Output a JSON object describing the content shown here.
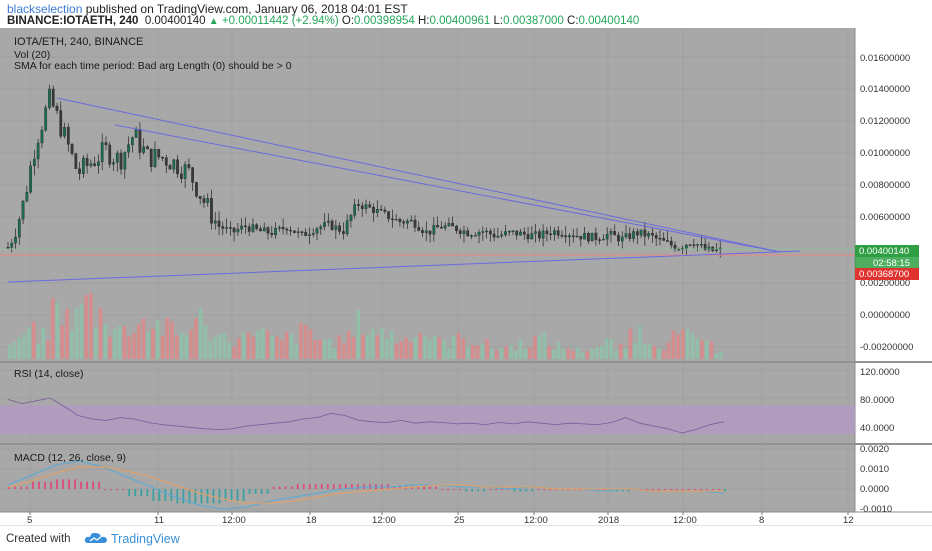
{
  "header": {
    "username": "blackselection",
    "published": "published on TradingView.com, January 06, 2018 04:01 EST",
    "symbol": "BINANCE:IOTAETH, 240",
    "last_price": "0.00400140",
    "change": "+0.00011442 (+2.94%)",
    "open_label": "O:",
    "open": "0.00398954",
    "high_label": "H:",
    "high": "0.00400961",
    "low_label": "L:",
    "low": "0.00387000",
    "close_label": "C:",
    "close": "0.00400140"
  },
  "legend": {
    "title": "IOTA/ETH, 240, BINANCE",
    "vol": "Vol (20)",
    "sma_error": "SMA for each time period: Bad arg Length (0) should be > 0",
    "rsi": "RSI (14, close)",
    "macd": "MACD (12, 26, close, 9)"
  },
  "badges": {
    "price": "0.00400140",
    "countdown": "02:58:15",
    "line": "0.00368700"
  },
  "footer": {
    "created": "Created with",
    "brand": "TradingView"
  },
  "colors": {
    "background": "#a8a8a8",
    "up_candle": "#1e6b52",
    "down_candle": "#3a3a3a",
    "trendline": "#6a6adf",
    "support_line": "#e88a80",
    "vol_up": "#8fc1a8",
    "vol_down": "#d98a8a",
    "rsi_band": "#b39ac4",
    "macd_line": "#5aa9d6",
    "signal_line": "#e8a060",
    "price_badge": "#2ea043",
    "line_badge": "#e0322f"
  },
  "chart_data": [
    {
      "type": "candlestick",
      "title": "IOTA/ETH, 240, BINANCE",
      "y_ticks": [
        "0.01600000",
        "0.01400000",
        "0.01200000",
        "0.01000000",
        "0.00800000",
        "0.00600000",
        "0.00200000",
        "0.00000000",
        "-0.00200000"
      ],
      "ylim": [
        -0.0024,
        0.0172
      ],
      "x_ticks": [
        "5",
        "11",
        "12:00",
        "18",
        "12:00",
        "25",
        "12:00",
        "2018",
        "12:00",
        "8",
        "12"
      ],
      "grid": true,
      "close_path": [
        0.0042,
        0.0065,
        0.0108,
        0.0134,
        0.0112,
        0.0088,
        0.0095,
        0.0102,
        0.0096,
        0.0112,
        0.0098,
        0.0098,
        0.0094,
        0.0088,
        0.0071,
        0.0056,
        0.0051,
        0.0055,
        0.0052,
        0.0051,
        0.0055,
        0.0049,
        0.0054,
        0.0056,
        0.0052,
        0.0069,
        0.0066,
        0.0062,
        0.0058,
        0.0058,
        0.0051,
        0.0055,
        0.0054,
        0.0051,
        0.0052,
        0.0049,
        0.0051,
        0.005,
        0.0049,
        0.0052,
        0.0051,
        0.0049,
        0.0048,
        0.005,
        0.0047,
        0.0051,
        0.0049,
        0.0045,
        0.0042,
        0.0046,
        0.004,
        0.004
      ],
      "trendlines": [
        {
          "x": [
            "Jan 06 2018",
            "Jan 06 2018"
          ],
          "y": [
            0.0134,
            0.004
          ]
        },
        {
          "x": [
            "Jan 06 2018",
            "Jan 06 2018"
          ],
          "y": [
            0.0117,
            0.004
          ]
        },
        {
          "x": [
            "Jan 06 2018",
            "Jan 06 2018"
          ],
          "y": [
            0.0012,
            0.004
          ]
        }
      ],
      "horizontal_lines": [
        0.003687,
        0.0040014
      ]
    },
    {
      "type": "bar",
      "title": "Vol (20)",
      "values": [
        0.18,
        0.3,
        0.25,
        0.55,
        0.45,
        0.62,
        0.5,
        0.35,
        0.3,
        0.42,
        0.38,
        0.33,
        0.28,
        0.45,
        0.3,
        0.25,
        0.22,
        0.35,
        0.28,
        0.2,
        0.24,
        0.3,
        0.22,
        0.19,
        0.25,
        0.4,
        0.32,
        0.28,
        0.22,
        0.3,
        0.26,
        0.18,
        0.22,
        0.2,
        0.16,
        0.12,
        0.14,
        0.18,
        0.22,
        0.15,
        0.12,
        0.1,
        0.14,
        0.18,
        0.12,
        0.3,
        0.22,
        0.16,
        0.24,
        0.28,
        0.15,
        0.1
      ]
    },
    {
      "type": "line",
      "title": "RSI (14, close)",
      "y_ticks": [
        "120.0000",
        "80.0000",
        "40.0000"
      ],
      "ylim": [
        20,
        130
      ],
      "band": [
        30,
        70
      ],
      "values": [
        78,
        72,
        76,
        80,
        68,
        55,
        50,
        48,
        52,
        50,
        45,
        42,
        40,
        38,
        36,
        35,
        36,
        40,
        42,
        44,
        46,
        50,
        52,
        58,
        55,
        48,
        46,
        45,
        48,
        44,
        46,
        45,
        43,
        44,
        42,
        45,
        43,
        46,
        44,
        42,
        44,
        43,
        42,
        45,
        52,
        44,
        40,
        36,
        30,
        35,
        42,
        46
      ]
    },
    {
      "type": "line",
      "title": "MACD (12, 26, close, 9)",
      "y_ticks": [
        "0.0020",
        "0.0010",
        "0.0000",
        "-0.0010"
      ],
      "ylim": [
        -0.0013,
        0.0023
      ],
      "series": [
        {
          "values": [
            0.0002,
            0.0007,
            0.0012,
            0.0014,
            0.0011,
            0.0006,
            0.0001,
            -0.0004,
            -0.0008,
            -0.001,
            -0.0009,
            -0.0006,
            -0.0004,
            -0.0002,
            0.0,
            0.0001,
            0.0001,
            0.0002,
            0.0002,
            0.0001,
            0.0001,
            0.0,
            0.0001,
            0.0,
            0.0,
            -0.0001,
            0.0,
            -0.0001,
            -0.0001,
            -0.0001,
            -0.0002
          ]
        },
        {
          "values": [
            0.0001,
            0.0004,
            0.0008,
            0.0011,
            0.0011,
            0.0009,
            0.0006,
            0.0002,
            -0.0002,
            -0.0005,
            -0.0007,
            -0.0007,
            -0.0006,
            -0.0004,
            -0.0002,
            -0.0001,
            0.0,
            0.0001,
            0.0002,
            0.0002,
            0.0001,
            0.0001,
            0.0001,
            0.0,
            0.0,
            0.0,
            0.0,
            -0.0001,
            -0.0001,
            -0.0001,
            -0.0001
          ]
        }
      ]
    }
  ]
}
